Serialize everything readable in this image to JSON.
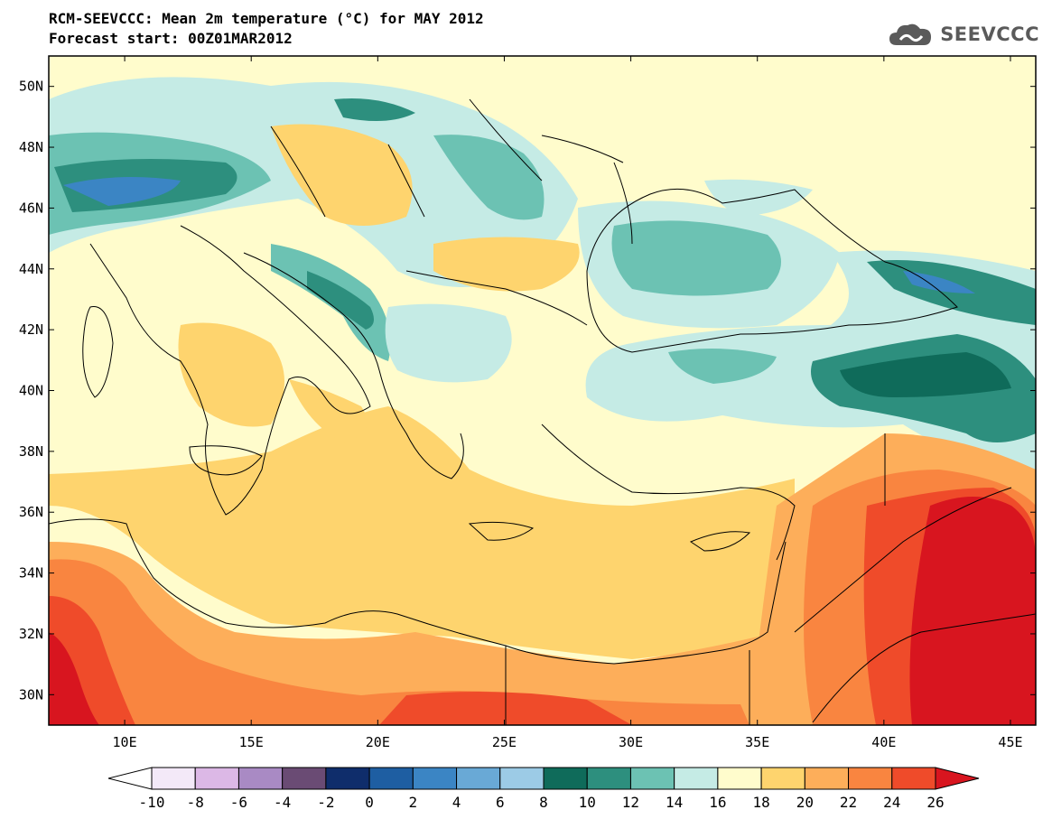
{
  "title": {
    "line1": "RCM-SEEVCCC: Mean 2m temperature (°C) for MAY 2012",
    "line2": "Forecast start: 00Z01MAR2012"
  },
  "logo": {
    "text": "SEEVCCC",
    "icon": "cloud-icon"
  },
  "map": {
    "lon_range": [
      7,
      46
    ],
    "lat_range": [
      29,
      51
    ],
    "lat_ticks": [
      "50N",
      "48N",
      "46N",
      "44N",
      "42N",
      "40N",
      "38N",
      "36N",
      "34N",
      "32N",
      "30N"
    ],
    "lon_ticks": [
      "10E",
      "15E",
      "20E",
      "25E",
      "30E",
      "35E",
      "40E",
      "45E"
    ]
  },
  "colorbar": {
    "labels": [
      "-10",
      "-8",
      "-6",
      "-4",
      "-2",
      "0",
      "2",
      "4",
      "6",
      "8",
      "10",
      "12",
      "14",
      "16",
      "18",
      "20",
      "22",
      "24",
      "26"
    ],
    "colors": [
      "#f3e9f8",
      "#dcb8e6",
      "#a98ac4",
      "#6a4b74",
      "#0f2d6b",
      "#1e5ea2",
      "#3b85c4",
      "#69a9d6",
      "#9ccbe6",
      "#0f6b5a",
      "#2d8f7e",
      "#6cc2b3",
      "#c5ebe5",
      "#fffccc",
      "#fed46e",
      "#fdae5a",
      "#f98540",
      "#ef4b2a"
    ],
    "low_color": "#ffffff",
    "high_color": "#d8151f"
  }
}
